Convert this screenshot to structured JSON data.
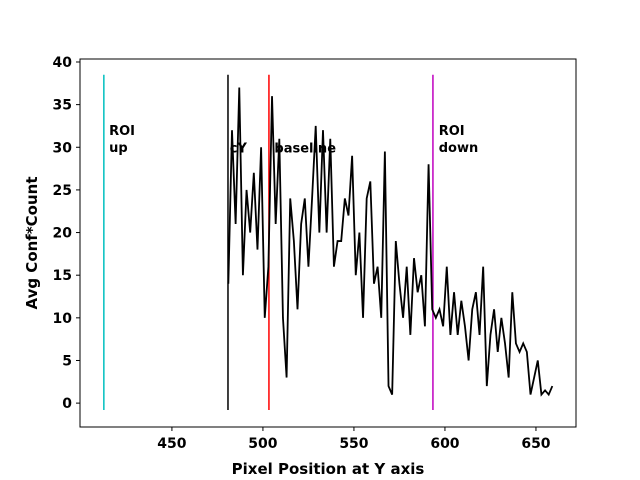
{
  "chart_data": {
    "type": "line",
    "x_label": "Pixel Position at Y axis",
    "y_label": "Avg Conf*Count",
    "xlim": [
      399.5,
      672
    ],
    "ylim": [
      -2.8,
      40.35
    ],
    "xticks": [
      450,
      500,
      550,
      600,
      650
    ],
    "yticks": [
      0,
      5,
      10,
      15,
      20,
      25,
      30,
      35,
      40
    ],
    "series": [
      {
        "color": "#000000",
        "x": [
          481,
          483,
          485,
          487,
          489,
          491,
          493,
          495,
          497,
          499,
          501,
          503,
          505,
          507,
          509,
          511,
          513,
          515,
          517,
          519,
          521,
          523,
          525,
          527,
          529,
          531,
          533,
          535,
          537,
          539,
          541,
          543,
          545,
          547,
          549,
          551,
          553,
          555,
          557,
          559,
          561,
          563,
          565,
          567,
          569,
          571,
          573,
          575,
          577,
          579,
          581,
          583,
          585,
          587,
          589,
          591,
          593,
          595,
          597,
          599,
          601,
          603,
          605,
          607,
          609,
          611,
          613,
          615,
          617,
          619,
          621,
          623,
          625,
          627,
          629,
          631,
          633,
          635,
          637,
          639,
          641,
          643,
          645,
          647,
          649,
          651,
          653,
          655,
          657,
          659
        ],
        "values": [
          14,
          32,
          21,
          37,
          15,
          25,
          20,
          27,
          18,
          30,
          10,
          16,
          36,
          21,
          31,
          10,
          3,
          24,
          19,
          11,
          21,
          24,
          16,
          24,
          32.5,
          20,
          32,
          20,
          31,
          16,
          19,
          19,
          24,
          22,
          29,
          15,
          20,
          10,
          24,
          26,
          14,
          16,
          10,
          29.5,
          2,
          1,
          19,
          14,
          10,
          16,
          8,
          17,
          13,
          15,
          9,
          28,
          11,
          10,
          11,
          9,
          16,
          8,
          13,
          8,
          12,
          9,
          5,
          11,
          13,
          8,
          16,
          2,
          8,
          11,
          6,
          10,
          7,
          3,
          13,
          7,
          6,
          7,
          6,
          1,
          3,
          5,
          1,
          1.5,
          1,
          2
        ]
      }
    ],
    "vlines": [
      {
        "x": 412.6,
        "color": "#00bfbf"
      },
      {
        "x": 480.8,
        "color": "#000000"
      },
      {
        "x": 503.3,
        "color": "#ff0000"
      },
      {
        "x": 593.4,
        "color": "#bf00bf"
      }
    ],
    "vline_span": [
      -0.8,
      38.5
    ],
    "annotations": [
      {
        "lines": [
          "ROI",
          "up"
        ],
        "x": 415.5,
        "y": 32
      },
      {
        "lines": [
          "cY"
        ],
        "x": 481.8,
        "y": 30
      },
      {
        "lines": [
          "baseline"
        ],
        "x": 506.3,
        "y": 30
      },
      {
        "lines": [
          "ROI",
          "down"
        ],
        "x": 596.6,
        "y": 32
      }
    ]
  }
}
